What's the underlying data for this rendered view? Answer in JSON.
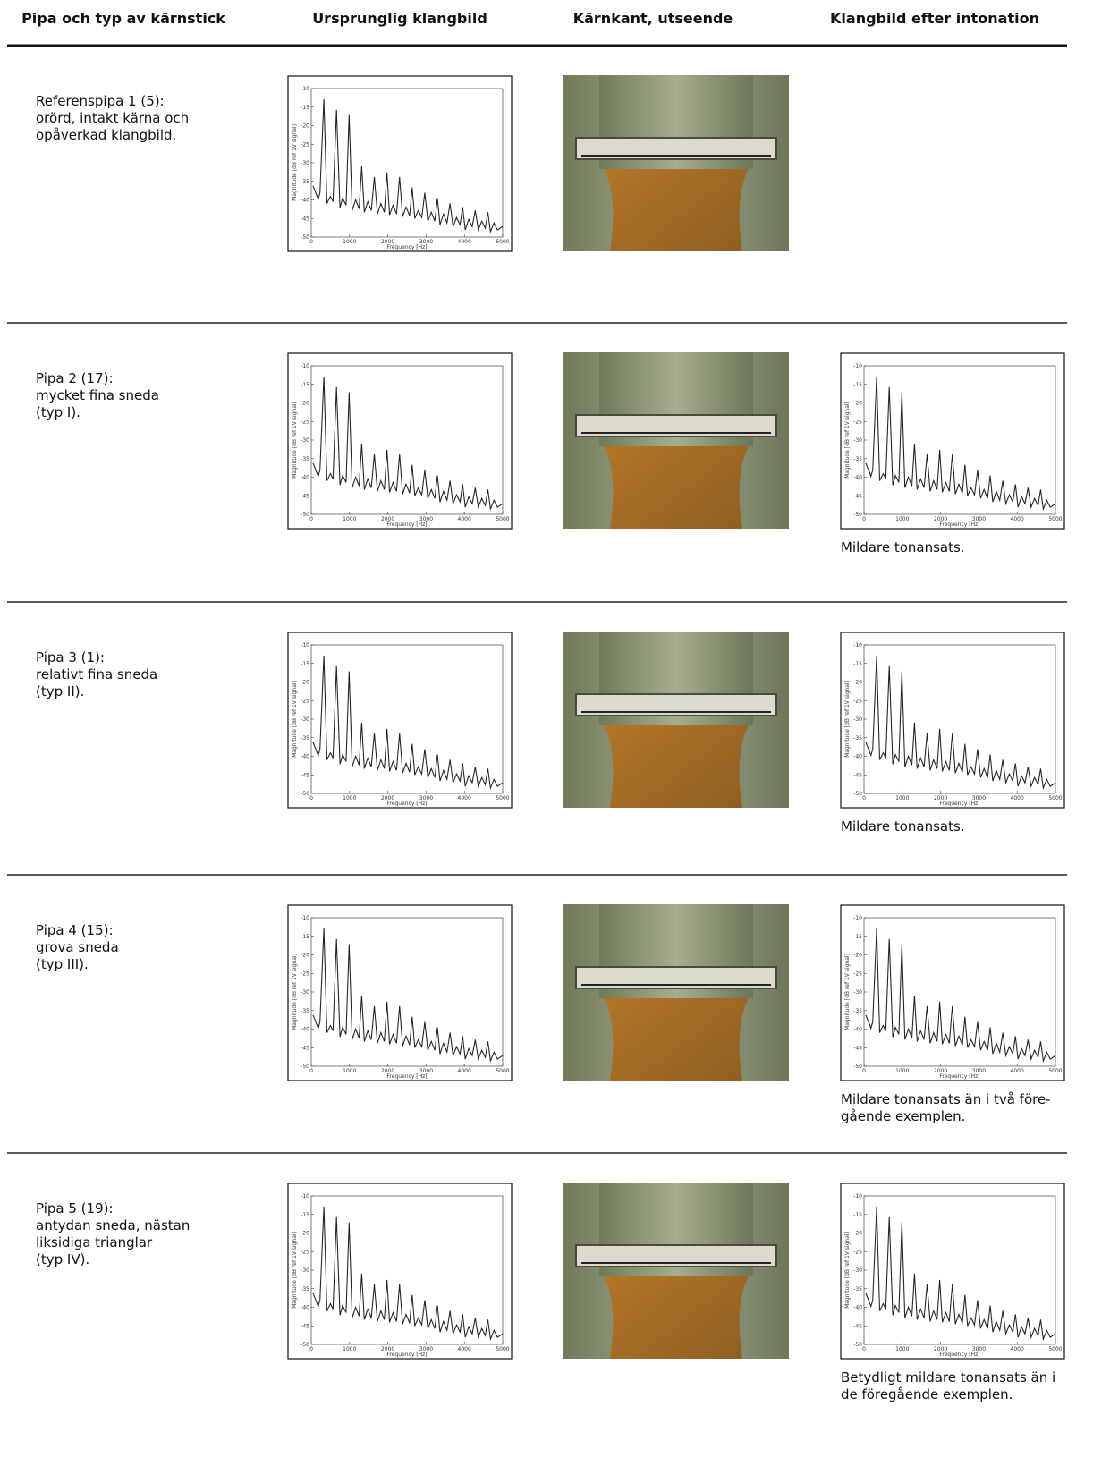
{
  "header": {
    "columns": [
      "Pipa och typ av kärnstick",
      "Ursprunglig klangbild",
      "Kärnkant, utseende",
      "Klangbild efter intonation"
    ]
  },
  "spectrum_axes": {
    "ylabel": "Magnitude [dB ref 1V signal]",
    "xlabel": "Frequency [Hz]",
    "ylim": [
      -50,
      -10
    ],
    "yticks": [
      -10,
      -15,
      -20,
      -25,
      -30,
      -35,
      -40,
      -45,
      -50
    ],
    "xlim": [
      0,
      5000
    ],
    "xticks": [
      0,
      1000,
      2000,
      3000,
      4000,
      5000
    ]
  },
  "rows": [
    {
      "label": [
        "Referenspipa 1 (5):",
        "orörd, intakt kärna och",
        "opåverkad klangbild."
      ]
    },
    {
      "label": [
        "Pipa 2 (17):",
        "mycket fina sneda",
        "(typ I)."
      ],
      "note": [
        "Mildare tonansats."
      ]
    },
    {
      "label": [
        "Pipa 3 (1):",
        "relativt fina sneda",
        "(typ II)."
      ],
      "note": [
        "Mildare tonansats."
      ]
    },
    {
      "label": [
        "Pipa 4 (15):",
        "grova sneda",
        "(typ III)."
      ],
      "note": [
        "Mildare tonansats än i två före-",
        "gående exemplen."
      ]
    },
    {
      "label": [
        "Pipa 5 (19):",
        "antydan sneda, nästan",
        "liksidiga trianglar",
        "(typ IV)."
      ],
      "note": [
        "Betydligt mildare tonansats än i",
        "de föregående exemplen."
      ]
    }
  ]
}
